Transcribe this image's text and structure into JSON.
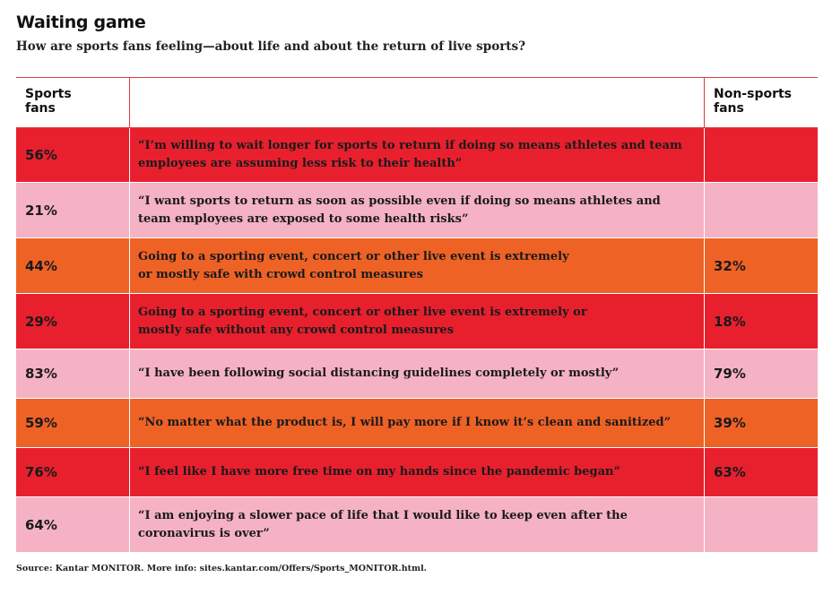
{
  "title": "Waiting game",
  "subtitle": "How are sports fans feeling—about life and about the return of live sports?",
  "source": "Source: Kantar MONITOR. More info: sites.kantar.com/Offers/Sports_MONITOR.html.",
  "colors": {
    "red": "#e8202e",
    "pink": "#f5b2c4",
    "orange": "#ef6226",
    "rule": "#e03a3a"
  },
  "chart_data": {
    "type": "table",
    "columns": [
      "Sports\nfans",
      "",
      "Non-sports\nfans"
    ],
    "rows": [
      {
        "sports_fans": "56%",
        "statement": "“I’m willing to wait longer for sports to return if doing so means athletes and team\nemployees are assuming less risk to their health”",
        "non_sports_fans": "",
        "color": "red"
      },
      {
        "sports_fans": "21%",
        "statement": "“I want sports to return as soon as possible even if doing so means athletes and\nteam employees are exposed to some health risks”",
        "non_sports_fans": "",
        "color": "pink"
      },
      {
        "sports_fans": "44%",
        "statement": "Going to a sporting event, concert or other live event is extremely\nor mostly safe with crowd control measures",
        "non_sports_fans": "32%",
        "color": "orange"
      },
      {
        "sports_fans": "29%",
        "statement": "Going to a sporting event, concert or other live event is extremely or\nmostly safe without any crowd control measures",
        "non_sports_fans": "18%",
        "color": "red"
      },
      {
        "sports_fans": "83%",
        "statement": "“I have been following social distancing guidelines completely or mostly”",
        "non_sports_fans": "79%",
        "color": "pink"
      },
      {
        "sports_fans": "59%",
        "statement": "“No matter what the product is, I will pay more if I know it’s clean and sanitized”",
        "non_sports_fans": "39%",
        "color": "orange"
      },
      {
        "sports_fans": "76%",
        "statement": "“I feel like I have more free time on my hands since the pandemic began”",
        "non_sports_fans": "63%",
        "color": "red"
      },
      {
        "sports_fans": "64%",
        "statement": "“I am enjoying a slower pace of life that I would like to keep even after the\ncoronavirus is over”",
        "non_sports_fans": "",
        "color": "pink"
      }
    ]
  }
}
